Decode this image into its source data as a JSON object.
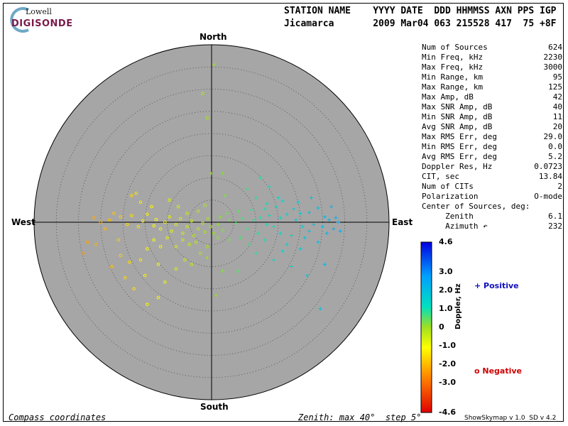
{
  "logo": {
    "top": "Lowell",
    "bottom": "DIGISONDE"
  },
  "header": {
    "line1": "STATION NAME    YYYY DATE  DDD HHMMSS AXN PPS IGP",
    "line2": "Jicamarca       2009 Mar04 063 215528 417  75 +8F"
  },
  "stats": [
    {
      "label": "Num of Sources",
      "value": "624"
    },
    {
      "label": "Min Freq, kHz",
      "value": "2230"
    },
    {
      "label": "Max Freq, kHz",
      "value": "3000"
    },
    {
      "label": "Min Range, km",
      "value": "95"
    },
    {
      "label": "Max Range, km",
      "value": "125"
    },
    {
      "label": "Max Amp, dB",
      "value": "42"
    },
    {
      "label": "Max SNR Amp, dB",
      "value": "40"
    },
    {
      "label": "Min SNR Amp, dB",
      "value": "11"
    },
    {
      "label": "Avg SNR Amp, dB",
      "value": "20"
    },
    {
      "label": "Max RMS Err, deg",
      "value": "29.0"
    },
    {
      "label": "Min RMS Err, deg",
      "value": "0.0"
    },
    {
      "label": "Avg RMS Err, deg",
      "value": "5.2"
    },
    {
      "label": "Doppler Res, Hz",
      "value": "0.0723"
    },
    {
      "label": "CIT, sec",
      "value": "13.84"
    },
    {
      "label": "Num of CITs",
      "value": "2"
    },
    {
      "label": "Polarization",
      "value": "O-mode"
    },
    {
      "label": "Center of Sources, deg:",
      "value": ""
    },
    {
      "label": "     Zenith",
      "value": "6.1"
    },
    {
      "label": "     Azimuth ↶",
      "value": "232"
    }
  ],
  "directions": {
    "north": "North",
    "south": "South",
    "east": "East",
    "west": "West"
  },
  "colorbar": {
    "ticks": [
      "4.6",
      "3.0",
      "2.0",
      "1.0",
      "0",
      "-1.0",
      "-2.0",
      "-3.0",
      "-4.6"
    ],
    "axis_label": "Doppler, Hz"
  },
  "legend": {
    "positive": "+ Positive",
    "negative": "o Negative",
    "positive_color": "#1010c0",
    "negative_color": "#d00000"
  },
  "footer": {
    "left": "Compass coordinates",
    "middle": "Zenith: max 40°  step 5°",
    "right": "ShowSkymap v 1.0  SD v 4.2"
  },
  "chart_data": {
    "type": "scatter",
    "title": "",
    "coordinate_system": "polar compass (zenith angle, azimuth)",
    "zenith_max_deg": 40,
    "zenith_step_deg": 5,
    "grid": true,
    "colorscale": {
      "quantity": "Doppler, Hz",
      "min": -4.6,
      "max": 4.6
    },
    "series": [
      {
        "name": "Positive",
        "marker": "+",
        "points_xy_deg_east_north": [
          [
            0.5,
            35.5
          ],
          [
            -0.1,
            11.0
          ],
          [
            2.5,
            11.0
          ],
          [
            11.0,
            10.0
          ],
          [
            13.0,
            8.0
          ],
          [
            8.0,
            7.5
          ],
          [
            3.0,
            6.0
          ],
          [
            10.0,
            5.5
          ],
          [
            12.5,
            4.2
          ],
          [
            14.5,
            3.5
          ],
          [
            16.0,
            4.8
          ],
          [
            18.5,
            3.0
          ],
          [
            20.0,
            2.0
          ],
          [
            22.0,
            2.2
          ],
          [
            24.0,
            3.2
          ],
          [
            25.5,
            1.2
          ],
          [
            26.5,
            0.5
          ],
          [
            27.0,
            3.5
          ],
          [
            28.0,
            1.0
          ],
          [
            28.5,
            0.0
          ],
          [
            29.0,
            -2.0
          ],
          [
            27.5,
            -1.5
          ],
          [
            26.0,
            -2.5
          ],
          [
            24.0,
            -4.5
          ],
          [
            22.0,
            -2.0
          ],
          [
            20.5,
            -1.0
          ],
          [
            19.0,
            0.5
          ],
          [
            18.0,
            -3.0
          ],
          [
            17.0,
            -5.0
          ],
          [
            15.5,
            -2.5
          ],
          [
            14.0,
            -1.0
          ],
          [
            12.5,
            -0.5
          ],
          [
            11.0,
            1.0
          ],
          [
            9.5,
            0.5
          ],
          [
            8.0,
            -1.5
          ],
          [
            7.0,
            0.8
          ],
          [
            5.5,
            -0.2
          ],
          [
            4.0,
            0.5
          ],
          [
            3.5,
            2.0
          ],
          [
            2.0,
            1.2
          ],
          [
            1.5,
            -0.5
          ],
          [
            6.0,
            2.5
          ],
          [
            9.0,
            2.8
          ],
          [
            13.0,
            1.5
          ],
          [
            15.5,
            1.0
          ],
          [
            17.0,
            1.8
          ],
          [
            21.0,
            -3.5
          ],
          [
            23.0,
            -0.5
          ],
          [
            25.0,
            -1.0
          ],
          [
            20.0,
            -6.0
          ],
          [
            16.0,
            -6.5
          ],
          [
            12.0,
            -4.0
          ],
          [
            10.0,
            -7.0
          ],
          [
            14.0,
            -8.5
          ],
          [
            18.0,
            -10.0
          ],
          [
            21.5,
            -12.0
          ],
          [
            25.5,
            -9.5
          ],
          [
            6.0,
            -11.0
          ],
          [
            2.5,
            -11.0
          ],
          [
            -1.0,
            -8.0
          ],
          [
            1.0,
            -16.5
          ],
          [
            24.5,
            -19.5
          ],
          [
            4.0,
            -4.0
          ],
          [
            6.5,
            -3.5
          ],
          [
            8.5,
            -5.0
          ],
          [
            10.5,
            -2.5
          ],
          [
            12.0,
            3.0
          ],
          [
            15.0,
            5.5
          ],
          [
            19.5,
            4.5
          ],
          [
            22.5,
            5.5
          ]
        ]
      },
      {
        "name": "Negative",
        "marker": "o",
        "points_xy_deg_east_north": [
          [
            -1.0,
            23.5
          ],
          [
            -17.0,
            6.5
          ],
          [
            -16.0,
            4.5
          ],
          [
            -22.0,
            2.0
          ],
          [
            -25.0,
            0.0
          ],
          [
            -26.5,
            1.0
          ],
          [
            -24.0,
            -1.5
          ],
          [
            -23.0,
            0.5
          ],
          [
            -20.5,
            1.2
          ],
          [
            -19.0,
            -0.5
          ],
          [
            -18.0,
            1.5
          ],
          [
            -16.5,
            -1.0
          ],
          [
            -15.5,
            0.3
          ],
          [
            -14.5,
            1.8
          ],
          [
            -13.0,
            -0.8
          ],
          [
            -12.5,
            0.6
          ],
          [
            -11.5,
            -1.5
          ],
          [
            -10.5,
            0.0
          ],
          [
            -9.5,
            1.2
          ],
          [
            -9.0,
            -2.0
          ],
          [
            -8.0,
            -0.5
          ],
          [
            -7.0,
            0.8
          ],
          [
            -6.5,
            -2.5
          ],
          [
            -5.5,
            -1.0
          ],
          [
            -4.5,
            0.3
          ],
          [
            -4.0,
            -3.0
          ],
          [
            -3.0,
            -1.5
          ],
          [
            -2.0,
            -0.2
          ],
          [
            -1.5,
            -2.2
          ],
          [
            -0.8,
            0.8
          ],
          [
            -0.2,
            -1.0
          ],
          [
            0.5,
            -2.5
          ],
          [
            1.5,
            -3.5
          ],
          [
            2.5,
            -1.8
          ],
          [
            -3.5,
            -4.5
          ],
          [
            -5.0,
            -5.0
          ],
          [
            -6.5,
            -4.0
          ],
          [
            -8.0,
            -5.5
          ],
          [
            -10.0,
            -3.5
          ],
          [
            -11.5,
            -5.5
          ],
          [
            -13.0,
            -4.0
          ],
          [
            -14.5,
            -6.0
          ],
          [
            -16.0,
            -8.5
          ],
          [
            -18.5,
            -9.0
          ],
          [
            -20.5,
            -7.5
          ],
          [
            -22.5,
            -10.0
          ],
          [
            -19.5,
            -12.5
          ],
          [
            -17.5,
            -15.0
          ],
          [
            -14.5,
            -18.5
          ],
          [
            -12.0,
            -17.0
          ],
          [
            -10.5,
            -13.5
          ],
          [
            -8.0,
            -10.5
          ],
          [
            -6.0,
            -8.5
          ],
          [
            -4.5,
            -9.5
          ],
          [
            -2.5,
            -7.0
          ],
          [
            -1.0,
            -5.5
          ],
          [
            -28.0,
            -4.5
          ],
          [
            -29.0,
            -7.0
          ],
          [
            -26.0,
            -5.0
          ],
          [
            -21.0,
            -4.0
          ],
          [
            -7.5,
            3.5
          ],
          [
            -5.5,
            2.0
          ],
          [
            -3.0,
            2.5
          ],
          [
            -1.5,
            3.8
          ],
          [
            -18.0,
            6.0
          ],
          [
            -13.5,
            3.5
          ],
          [
            -9.5,
            5.0
          ],
          [
            -12.0,
            -9.5
          ],
          [
            -15.0,
            -12.0
          ],
          [
            -2.0,
            29.0
          ]
        ]
      }
    ]
  }
}
